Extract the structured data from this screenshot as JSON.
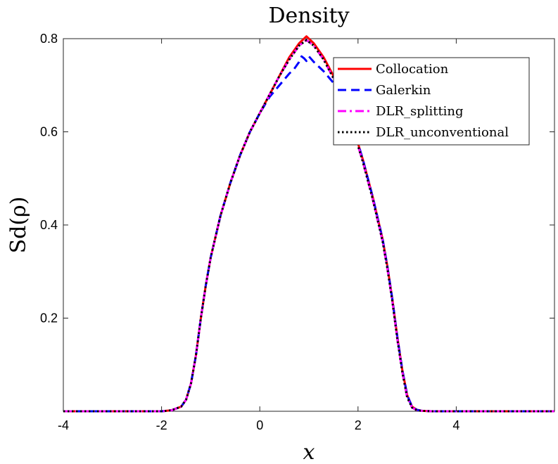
{
  "chart_data": {
    "type": "line",
    "title": "Density",
    "xlabel": "x",
    "ylabel": "Sd(ρ)",
    "xlim": [
      -4,
      6
    ],
    "ylim": [
      0,
      0.8
    ],
    "xticks": [
      -4,
      -2,
      0,
      2,
      4
    ],
    "xtick_labels": [
      "-4",
      "-2",
      "0",
      "2",
      "4"
    ],
    "yticks": [
      0.2,
      0.4,
      0.6,
      0.8
    ],
    "ytick_labels": [
      "0.2",
      "0.4",
      "0.6",
      "0.8"
    ],
    "grid": false,
    "legend_position": "top-right",
    "series": [
      {
        "name": "Collocation",
        "color": "#ff0000",
        "style": "solid",
        "x": [
          -4,
          -2,
          -1.8,
          -1.6,
          -1.5,
          -1.4,
          -1.3,
          -1.2,
          -1.1,
          -1.0,
          -0.8,
          -0.6,
          -0.4,
          -0.2,
          0,
          0.2,
          0.4,
          0.6,
          0.8,
          0.95,
          1.1,
          1.3,
          1.5,
          1.7,
          1.9,
          2.1,
          2.3,
          2.5,
          2.6,
          2.7,
          2.8,
          2.9,
          3.0,
          3.1,
          3.2,
          3.3,
          3.5,
          4,
          6
        ],
        "y": [
          0,
          0,
          0.002,
          0.01,
          0.025,
          0.06,
          0.12,
          0.2,
          0.27,
          0.33,
          0.42,
          0.49,
          0.55,
          0.6,
          0.64,
          0.68,
          0.72,
          0.76,
          0.79,
          0.805,
          0.79,
          0.76,
          0.72,
          0.67,
          0.61,
          0.54,
          0.46,
          0.37,
          0.31,
          0.24,
          0.16,
          0.09,
          0.035,
          0.01,
          0.003,
          0.001,
          0,
          0,
          0
        ]
      },
      {
        "name": "Galerkin",
        "color": "#0000ff",
        "style": "dashed",
        "x": [
          -4,
          -2,
          -1.8,
          -1.6,
          -1.5,
          -1.4,
          -1.3,
          -1.2,
          -1.1,
          -1.0,
          -0.8,
          -0.6,
          -0.4,
          -0.2,
          0,
          0.2,
          0.4,
          0.6,
          0.7,
          0.8,
          0.85,
          0.9,
          0.95,
          1.0,
          1.1,
          1.2,
          1.3,
          1.5,
          1.7,
          1.9,
          2.1,
          2.3,
          2.5,
          2.6,
          2.7,
          2.8,
          2.9,
          3.0,
          3.1,
          3.2,
          3.3,
          3.5,
          4,
          6
        ],
        "y": [
          0,
          0,
          0.002,
          0.01,
          0.025,
          0.06,
          0.12,
          0.2,
          0.27,
          0.33,
          0.42,
          0.49,
          0.55,
          0.6,
          0.64,
          0.675,
          0.7,
          0.725,
          0.735,
          0.75,
          0.762,
          0.758,
          0.752,
          0.762,
          0.75,
          0.74,
          0.73,
          0.705,
          0.665,
          0.61,
          0.54,
          0.46,
          0.37,
          0.31,
          0.24,
          0.16,
          0.09,
          0.035,
          0.01,
          0.003,
          0.001,
          0,
          0,
          0
        ]
      },
      {
        "name": "DLR_splitting",
        "color": "#ff00ff",
        "style": "dashdot",
        "x": [
          -4,
          -2,
          -1.8,
          -1.6,
          -1.5,
          -1.4,
          -1.3,
          -1.2,
          -1.1,
          -1.0,
          -0.8,
          -0.6,
          -0.4,
          -0.2,
          0,
          0.2,
          0.4,
          0.6,
          0.8,
          0.95,
          1.1,
          1.3,
          1.5,
          1.7,
          1.9,
          2.1,
          2.3,
          2.5,
          2.6,
          2.7,
          2.8,
          2.9,
          3.0,
          3.1,
          3.2,
          3.3,
          3.5,
          4,
          6
        ],
        "y": [
          0,
          0,
          0.002,
          0.01,
          0.025,
          0.06,
          0.12,
          0.2,
          0.27,
          0.33,
          0.42,
          0.49,
          0.55,
          0.6,
          0.64,
          0.68,
          0.72,
          0.755,
          0.785,
          0.797,
          0.785,
          0.755,
          0.715,
          0.665,
          0.605,
          0.535,
          0.455,
          0.365,
          0.305,
          0.235,
          0.155,
          0.085,
          0.03,
          0.008,
          0.002,
          0.001,
          0,
          0,
          0
        ]
      },
      {
        "name": "DLR_unconventional",
        "color": "#000000",
        "style": "dotted",
        "x": [
          -4,
          -2,
          -1.8,
          -1.6,
          -1.5,
          -1.4,
          -1.3,
          -1.2,
          -1.1,
          -1.0,
          -0.8,
          -0.6,
          -0.4,
          -0.2,
          0,
          0.2,
          0.4,
          0.6,
          0.8,
          0.95,
          1.1,
          1.3,
          1.5,
          1.7,
          1.9,
          2.1,
          2.3,
          2.5,
          2.6,
          2.7,
          2.8,
          2.9,
          3.0,
          3.1,
          3.2,
          3.3,
          3.5,
          4,
          6
        ],
        "y": [
          0,
          0,
          0.002,
          0.01,
          0.025,
          0.06,
          0.12,
          0.2,
          0.27,
          0.33,
          0.42,
          0.49,
          0.55,
          0.6,
          0.64,
          0.68,
          0.72,
          0.755,
          0.785,
          0.797,
          0.785,
          0.755,
          0.715,
          0.665,
          0.605,
          0.535,
          0.455,
          0.365,
          0.305,
          0.235,
          0.155,
          0.085,
          0.03,
          0.008,
          0.002,
          0.001,
          0,
          0,
          0
        ]
      }
    ]
  }
}
